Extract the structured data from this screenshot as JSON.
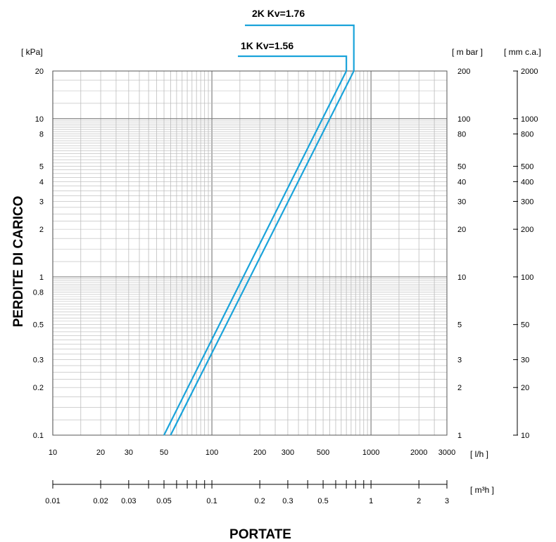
{
  "chart_data": {
    "type": "line",
    "title": "",
    "xlabel": "PORTATE",
    "ylabel": "PERDITE DI CARICO",
    "x_scale": "log",
    "y_scale": "log",
    "xlim": [
      10,
      3000
    ],
    "ylim": [
      0.1,
      20
    ],
    "grid": true,
    "series": [
      {
        "name": "1K  Kv=1.56",
        "color": "#1aa3da",
        "x": [
          50,
          700
        ],
        "y": [
          0.1,
          20
        ]
      },
      {
        "name": "2K  Kv=1.76",
        "color": "#1aa3da",
        "x": [
          55,
          780
        ],
        "y": [
          0.1,
          20
        ]
      }
    ],
    "x_axis_primary": {
      "unit": "[ l/h ]",
      "ticks": [
        {
          "value": 10,
          "label": "10"
        },
        {
          "value": 20,
          "label": "20"
        },
        {
          "value": 30,
          "label": "30"
        },
        {
          "value": 50,
          "label": "50"
        },
        {
          "value": 100,
          "label": "100"
        },
        {
          "value": 200,
          "label": "200"
        },
        {
          "value": 300,
          "label": "300"
        },
        {
          "value": 500,
          "label": "500"
        },
        {
          "value": 1000,
          "label": "1000"
        },
        {
          "value": 2000,
          "label": "2000"
        },
        {
          "value": 3000,
          "label": "3000"
        }
      ]
    },
    "x_axis_secondary": {
      "unit": "[ m³h ]",
      "ticks": [
        {
          "value": 0.01,
          "label": "0.01"
        },
        {
          "value": 0.02,
          "label": "0.02"
        },
        {
          "value": 0.03,
          "label": "0.03"
        },
        {
          "value": 0.05,
          "label": "0.05"
        },
        {
          "value": 0.1,
          "label": "0.1"
        },
        {
          "value": 0.2,
          "label": "0.2"
        },
        {
          "value": 0.3,
          "label": "0.3"
        },
        {
          "value": 0.5,
          "label": "0.5"
        },
        {
          "value": 1,
          "label": "1"
        },
        {
          "value": 2,
          "label": "2"
        },
        {
          "value": 3,
          "label": "3"
        }
      ]
    },
    "y_axis_left": {
      "unit": "[ kPa]",
      "ticks": [
        {
          "value": 0.1,
          "label": "0.1"
        },
        {
          "value": 0.2,
          "label": "0.2"
        },
        {
          "value": 0.3,
          "label": "0.3"
        },
        {
          "value": 0.5,
          "label": "0.5"
        },
        {
          "value": 0.8,
          "label": "0.8"
        },
        {
          "value": 1,
          "label": "1"
        },
        {
          "value": 2,
          "label": "2"
        },
        {
          "value": 3,
          "label": "3"
        },
        {
          "value": 4,
          "label": "4"
        },
        {
          "value": 5,
          "label": "5"
        },
        {
          "value": 8,
          "label": "8"
        },
        {
          "value": 10,
          "label": "10"
        },
        {
          "value": 20,
          "label": "20"
        }
      ]
    },
    "y_axis_mbar": {
      "unit": "[ m bar ]",
      "ticks": [
        {
          "value": 1,
          "label": "1"
        },
        {
          "value": 2,
          "label": "2"
        },
        {
          "value": 3,
          "label": "3"
        },
        {
          "value": 5,
          "label": "5"
        },
        {
          "value": 10,
          "label": "10"
        },
        {
          "value": 20,
          "label": "20"
        },
        {
          "value": 30,
          "label": "30"
        },
        {
          "value": 40,
          "label": "40"
        },
        {
          "value": 50,
          "label": "50"
        },
        {
          "value": 80,
          "label": "80"
        },
        {
          "value": 100,
          "label": "100"
        },
        {
          "value": 200,
          "label": "200"
        }
      ]
    },
    "y_axis_mmca": {
      "unit": "[ mm c.a.]",
      "ticks": [
        {
          "value": 10,
          "label": "10"
        },
        {
          "value": 20,
          "label": "20"
        },
        {
          "value": 30,
          "label": "30"
        },
        {
          "value": 50,
          "label": "50"
        },
        {
          "value": 100,
          "label": "100"
        },
        {
          "value": 200,
          "label": "200"
        },
        {
          "value": 300,
          "label": "300"
        },
        {
          "value": 400,
          "label": "400"
        },
        {
          "value": 500,
          "label": "500"
        },
        {
          "value": 800,
          "label": "800"
        },
        {
          "value": 1000,
          "label": "1000"
        },
        {
          "value": 2000,
          "label": "2000"
        }
      ]
    }
  }
}
